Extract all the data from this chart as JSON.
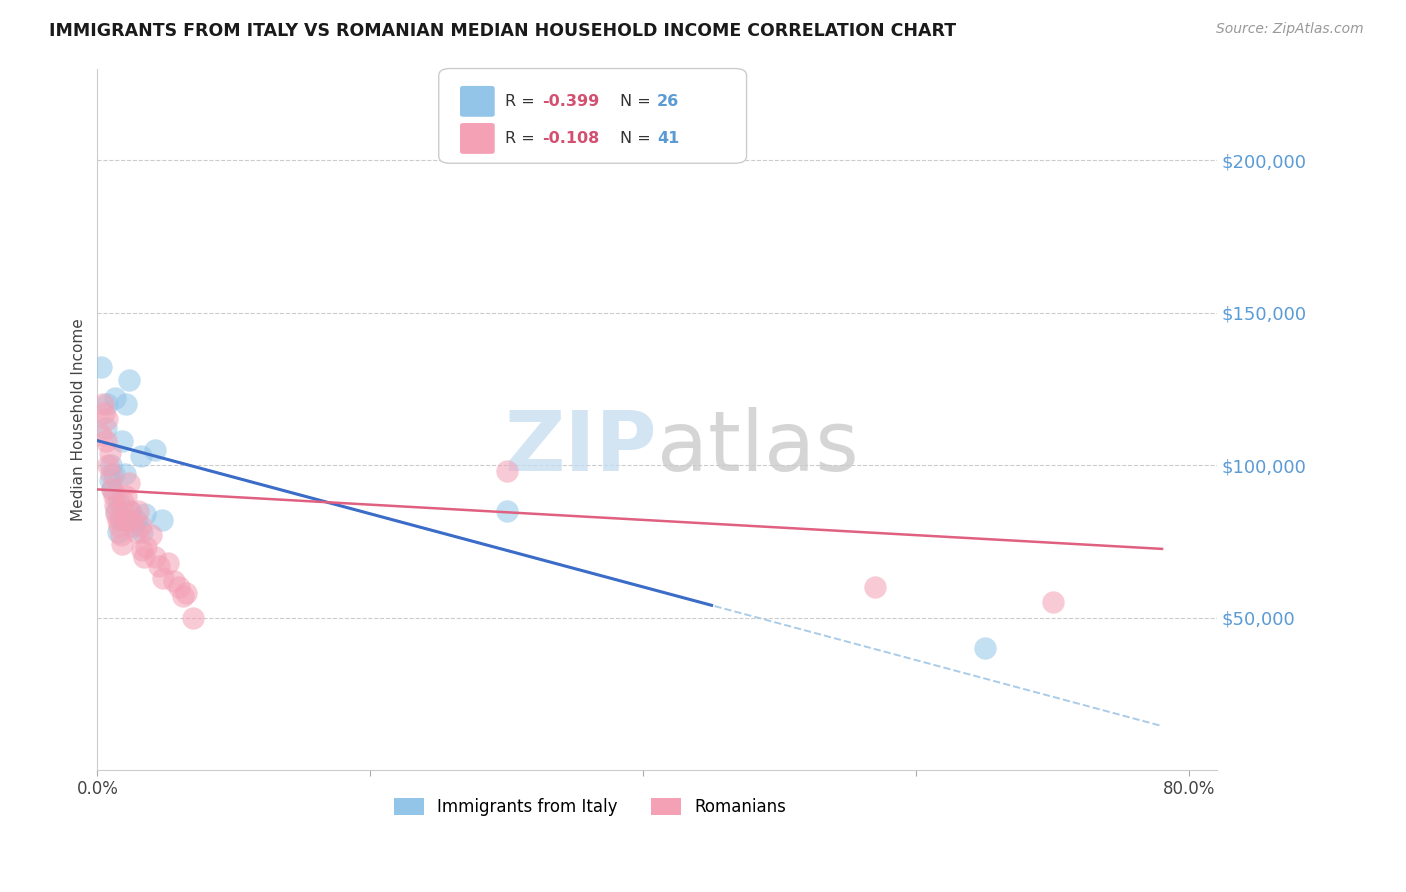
{
  "title": "IMMIGRANTS FROM ITALY VS ROMANIAN MEDIAN HOUSEHOLD INCOME CORRELATION CHART",
  "source": "Source: ZipAtlas.com",
  "ylabel": "Median Household Income",
  "ytick_labels": [
    "$50,000",
    "$100,000",
    "$150,000",
    "$200,000"
  ],
  "ytick_values": [
    50000,
    100000,
    150000,
    200000
  ],
  "ymin": 0,
  "ymax": 230000,
  "xmin": 0.0,
  "xmax": 0.82,
  "italy_color": "#92C5E8",
  "romanian_color": "#F4A0B5",
  "italy_line_color": "#3B6CC7",
  "romanian_line_color": "#E06080",
  "italy_dashed_color": "#AACCE8",
  "italy_points": [
    [
      0.003,
      132000
    ],
    [
      0.006,
      112000
    ],
    [
      0.007,
      120000
    ],
    [
      0.009,
      95000
    ],
    [
      0.01,
      100000
    ],
    [
      0.011,
      92000
    ],
    [
      0.012,
      97000
    ],
    [
      0.013,
      122000
    ],
    [
      0.014,
      85000
    ],
    [
      0.015,
      78000
    ],
    [
      0.016,
      88000
    ],
    [
      0.017,
      82000
    ],
    [
      0.018,
      108000
    ],
    [
      0.02,
      97000
    ],
    [
      0.021,
      120000
    ],
    [
      0.023,
      128000
    ],
    [
      0.024,
      85000
    ],
    [
      0.026,
      80000
    ],
    [
      0.028,
      82000
    ],
    [
      0.032,
      103000
    ],
    [
      0.033,
      78000
    ],
    [
      0.035,
      84000
    ],
    [
      0.042,
      105000
    ],
    [
      0.047,
      82000
    ],
    [
      0.3,
      85000
    ],
    [
      0.65,
      40000
    ]
  ],
  "romanian_points": [
    [
      0.003,
      110000
    ],
    [
      0.004,
      120000
    ],
    [
      0.005,
      117000
    ],
    [
      0.006,
      108000
    ],
    [
      0.007,
      115000
    ],
    [
      0.008,
      100000
    ],
    [
      0.009,
      104000
    ],
    [
      0.01,
      97000
    ],
    [
      0.011,
      92000
    ],
    [
      0.012,
      90000
    ],
    [
      0.013,
      87000
    ],
    [
      0.014,
      84000
    ],
    [
      0.015,
      82000
    ],
    [
      0.016,
      80000
    ],
    [
      0.017,
      77000
    ],
    [
      0.018,
      74000
    ],
    [
      0.019,
      88000
    ],
    [
      0.02,
      82000
    ],
    [
      0.021,
      90000
    ],
    [
      0.023,
      94000
    ],
    [
      0.024,
      85000
    ],
    [
      0.026,
      82000
    ],
    [
      0.028,
      78000
    ],
    [
      0.03,
      85000
    ],
    [
      0.032,
      80000
    ],
    [
      0.033,
      72000
    ],
    [
      0.034,
      70000
    ],
    [
      0.036,
      73000
    ],
    [
      0.039,
      77000
    ],
    [
      0.042,
      70000
    ],
    [
      0.045,
      67000
    ],
    [
      0.048,
      63000
    ],
    [
      0.052,
      68000
    ],
    [
      0.056,
      62000
    ],
    [
      0.06,
      60000
    ],
    [
      0.063,
      57000
    ],
    [
      0.065,
      58000
    ],
    [
      0.07,
      50000
    ],
    [
      0.3,
      98000
    ],
    [
      0.57,
      60000
    ],
    [
      0.7,
      55000
    ]
  ]
}
